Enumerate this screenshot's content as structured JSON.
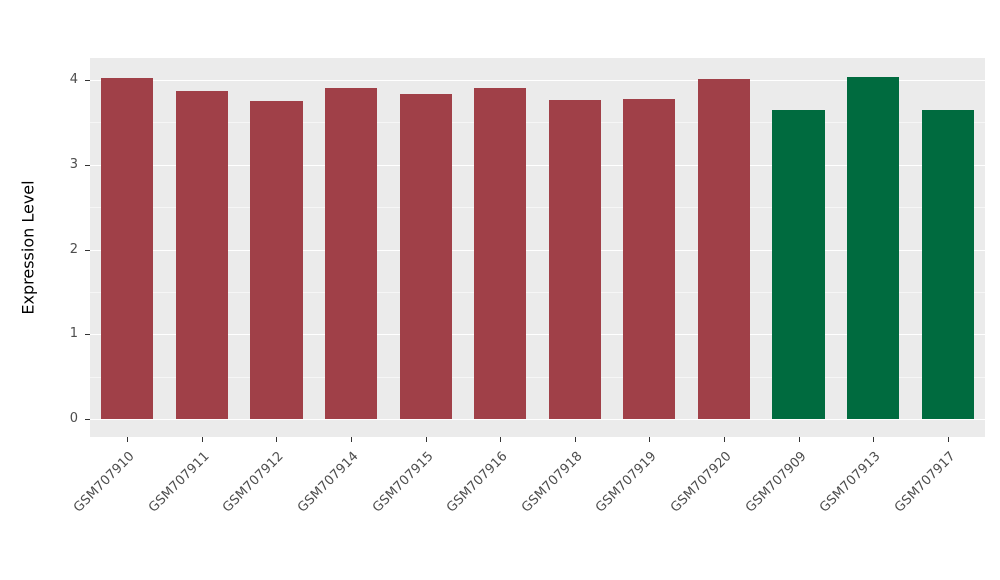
{
  "chart_data": {
    "type": "bar",
    "title": "",
    "xlabel": "",
    "ylabel": "Expression Level",
    "ylim": [
      0,
      4
    ],
    "y_ticks": [
      "0",
      "1",
      "2",
      "3",
      "4"
    ],
    "grid": "on",
    "legend_position": "none",
    "panel_background": "#EBEBEB",
    "gridline_color": "#FFFFFF",
    "categories": [
      "GSM707910",
      "GSM707911",
      "GSM707912",
      "GSM707914",
      "GSM707915",
      "GSM707916",
      "GSM707918",
      "GSM707919",
      "GSM707920",
      "GSM707909",
      "GSM707913",
      "GSM707917"
    ],
    "values": [
      4.02,
      3.87,
      3.75,
      3.91,
      3.84,
      3.91,
      3.77,
      3.78,
      4.01,
      3.65,
      4.04,
      3.65
    ],
    "groups": [
      "group1",
      "group1",
      "group1",
      "group1",
      "group1",
      "group1",
      "group1",
      "group1",
      "group1",
      "group2",
      "group2",
      "group2"
    ],
    "group_colors": {
      "group1": "#A04048",
      "group2": "#006B3F"
    }
  }
}
